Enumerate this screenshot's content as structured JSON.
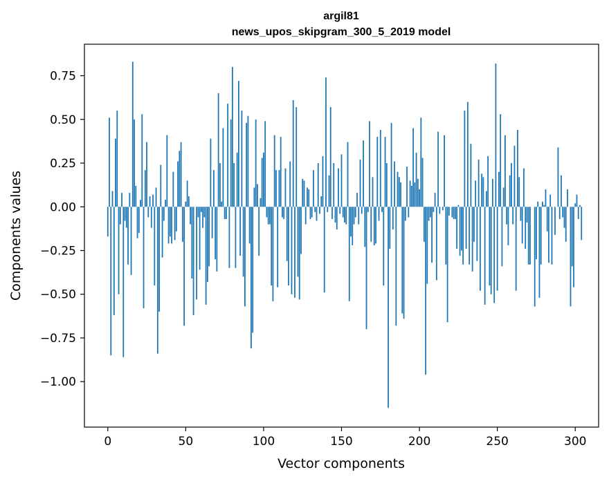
{
  "chart_data": {
    "type": "bar",
    "title": "argil81",
    "subtitle": "news_upos_skipgram_300_5_2019 model",
    "xlabel": "Vector components",
    "ylabel": "Components values",
    "xlim": [
      -15,
      315
    ],
    "ylim": [
      -1.26,
      0.93
    ],
    "xticks": [
      0,
      50,
      100,
      150,
      200,
      250,
      300
    ],
    "yticks": [
      -1.0,
      -0.75,
      -0.5,
      -0.25,
      0.0,
      0.25,
      0.5,
      0.75
    ],
    "xtick_labels": [
      "0",
      "50",
      "100",
      "150",
      "200",
      "250",
      "300"
    ],
    "ytick_labels": [
      "−1.00",
      "−0.75",
      "−0.50",
      "−0.25",
      "0.00",
      "0.25",
      "0.50",
      "0.75"
    ],
    "bar_color": "#1f77b4",
    "grid": false,
    "legend": "none",
    "values": [
      -0.17,
      0.51,
      -0.85,
      0.09,
      -0.62,
      0.39,
      0.55,
      -0.5,
      -0.1,
      0.08,
      -0.86,
      -0.08,
      -0.12,
      -0.33,
      0.08,
      -0.39,
      0.83,
      0.5,
      0.12,
      -0.18,
      -0.15,
      0.04,
      0.53,
      -0.58,
      0.21,
      0.37,
      -0.06,
      0.06,
      -0.12,
      0.07,
      -0.45,
      0.11,
      -0.84,
      -0.6,
      0.24,
      -0.29,
      -0.08,
      0.04,
      0.41,
      -0.21,
      -0.17,
      -0.21,
      0.2,
      -0.19,
      -0.14,
      0.26,
      0.32,
      0.37,
      -0.2,
      -0.68,
      0.03,
      0.15,
      0.06,
      -0.1,
      -0.41,
      -0.62,
      0.0,
      -0.53,
      -0.06,
      -0.36,
      -0.03,
      -0.12,
      -0.06,
      -0.56,
      -0.43,
      -0.34,
      0.39,
      -0.18,
      0.21,
      -0.3,
      -0.37,
      0.65,
      0.25,
      0.03,
      0.45,
      -0.07,
      -0.07,
      0.59,
      -0.35,
      0.5,
      0.8,
      0.25,
      -0.35,
      0.31,
      0.72,
      -0.28,
      0.55,
      -0.4,
      -0.57,
      0.48,
      0.52,
      -0.21,
      -0.81,
      -0.72,
      0.11,
      0.5,
      0.13,
      -0.28,
      0.05,
      0.28,
      0.31,
      0.49,
      -0.06,
      -0.1,
      -0.1,
      -0.45,
      -0.54,
      0.41,
      0.21,
      -0.46,
      0.21,
      0.4,
      -0.06,
      -0.07,
      0.22,
      -0.31,
      -0.45,
      0.26,
      -0.5,
      0.61,
      -0.52,
      0.57,
      -0.4,
      -0.53,
      -0.27,
      0.16,
      0.15,
      -0.1,
      0.11,
      0.1,
      -0.07,
      -0.06,
      0.21,
      -0.03,
      -0.08,
      0.25,
      -0.04,
      0.06,
      0.29,
      -0.49,
      0.74,
      -0.03,
      0.18,
      0.57,
      -0.07,
      0.25,
      -0.09,
      -0.13,
      0.22,
      -0.04,
      0.3,
      -0.06,
      -0.09,
      -0.1,
      0.37,
      -0.54,
      -0.17,
      -0.22,
      -0.1,
      -0.06,
      0.08,
      -0.1,
      0.27,
      -0.04,
      0.38,
      -0.23,
      -0.7,
      -0.03,
      0.49,
      -0.2,
      0.17,
      -0.22,
      -0.21,
      0.4,
      -0.08,
      0.44,
      -0.03,
      -0.45,
      0.4,
      0.25,
      -1.15,
      -0.24,
      0.48,
      -0.13,
      0.26,
      -0.68,
      0.2,
      0.17,
      0.14,
      -0.61,
      -0.64,
      -0.08,
      0.23,
      -0.06,
      0.15,
      0.12,
      0.45,
      0.14,
      0.31,
      0.16,
      0.1,
      0.51,
      0.28,
      -0.2,
      -0.96,
      -0.44,
      -0.08,
      -0.06,
      -0.32,
      -0.03,
      0.08,
      -0.42,
      0.43,
      -0.04,
      0.0,
      -0.02,
      0.41,
      -0.33,
      -0.66,
      -0.05,
      0.0,
      -0.06,
      -0.07,
      -0.07,
      -0.24,
      0.01,
      -0.28,
      -0.25,
      -0.33,
      0.55,
      -0.24,
      0.6,
      -0.33,
      0.36,
      -0.37,
      -0.2,
      0.15,
      -0.31,
      0.27,
      -0.48,
      0.19,
      0.17,
      -0.56,
      0.09,
      0.29,
      -0.45,
      -0.5,
      0.16,
      -0.55,
      0.82,
      -0.48,
      0.2,
      0.53,
      -0.34,
      0.11,
      0.41,
      -0.1,
      -0.22,
      0.18,
      0.25,
      -0.1,
      0.35,
      -0.48,
      0.44,
      0.17,
      -0.08,
      -0.21,
      0.22,
      -0.24,
      -0.09,
      -0.33,
      -0.33,
      0.0,
      0.0,
      -0.57,
      -0.3,
      0.03,
      -0.52,
      -0.33,
      0.03,
      0.01,
      0.1,
      -0.14,
      -0.32,
      0.07,
      -0.33,
      0.0,
      -0.16,
      0.0,
      0.34,
      -0.07,
      0.18,
      -0.06,
      -0.12,
      -0.2,
      0.1,
      0.0,
      -0.57,
      -0.34,
      -0.46,
      0.02,
      0.07,
      -0.07,
      0.01,
      -0.19
    ]
  }
}
